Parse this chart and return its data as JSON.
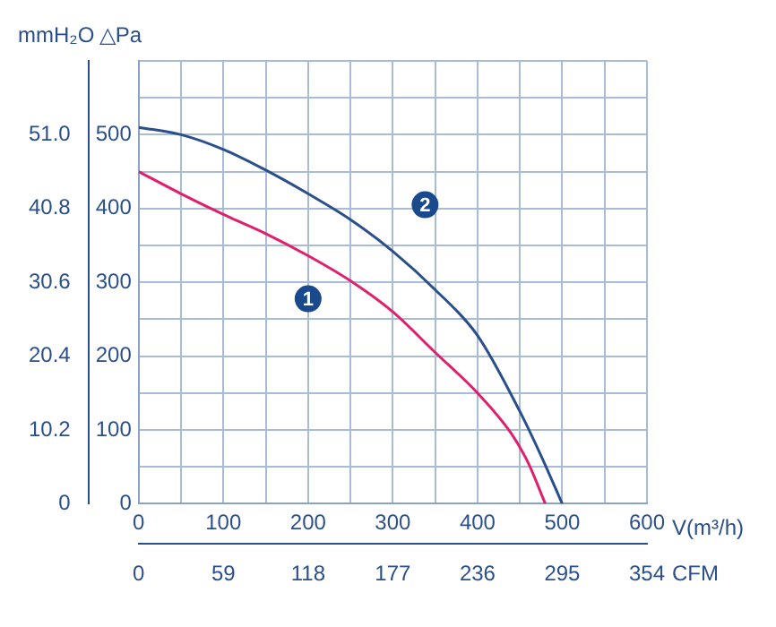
{
  "chart_data": {
    "type": "line",
    "xlabel": "V(m³/h)",
    "x2label": "CFM",
    "ylabel": "△Pa",
    "y2label": "mmH₂O",
    "xlim": [
      0,
      600
    ],
    "xticks": [
      0,
      {
        "value": 50,
        "label": null
      },
      100,
      {
        "value": 150,
        "label": null
      },
      200,
      {
        "value": 250,
        "label": null
      },
      300,
      {
        "value": 350,
        "label": null
      },
      400,
      {
        "value": 450,
        "label": null
      },
      500,
      {
        "value": 550,
        "label": null
      },
      600
    ],
    "x2lim": [
      0,
      354
    ],
    "x2ticks": [
      0,
      59,
      118,
      177,
      236,
      295,
      354
    ],
    "ylim": [
      0,
      600
    ],
    "yticks": [
      0,
      {
        "value": 50,
        "label": null
      },
      100,
      {
        "value": 150,
        "label": null
      },
      200,
      {
        "value": 250,
        "label": null
      },
      300,
      {
        "value": 350,
        "label": null
      },
      400,
      {
        "value": 450,
        "label": null
      },
      500,
      {
        "value": 550,
        "label": null
      },
      {
        "value": 600,
        "label": null
      }
    ],
    "y2lim": [
      0,
      61.2
    ],
    "y2ticks": [
      0,
      10.2,
      20.4,
      30.6,
      40.8,
      {
        "value": 51,
        "label": "51.0"
      }
    ],
    "grid": true,
    "marker": "none",
    "line_style": "solid",
    "series": [
      {
        "name": "1",
        "color": "#e0206e",
        "x": [
          0,
          50,
          100,
          150,
          200,
          250,
          300,
          350,
          400,
          440,
          460,
          480
        ],
        "values": [
          450,
          420,
          392,
          366,
          336,
          302,
          260,
          205,
          150,
          95,
          55,
          0
        ]
      },
      {
        "name": "2",
        "color": "#2a4f8a",
        "x": [
          0,
          50,
          100,
          150,
          200,
          250,
          300,
          350,
          400,
          450,
          475,
          500
        ],
        "values": [
          510,
          500,
          480,
          452,
          420,
          385,
          342,
          290,
          228,
          125,
          65,
          0
        ]
      }
    ]
  }
}
